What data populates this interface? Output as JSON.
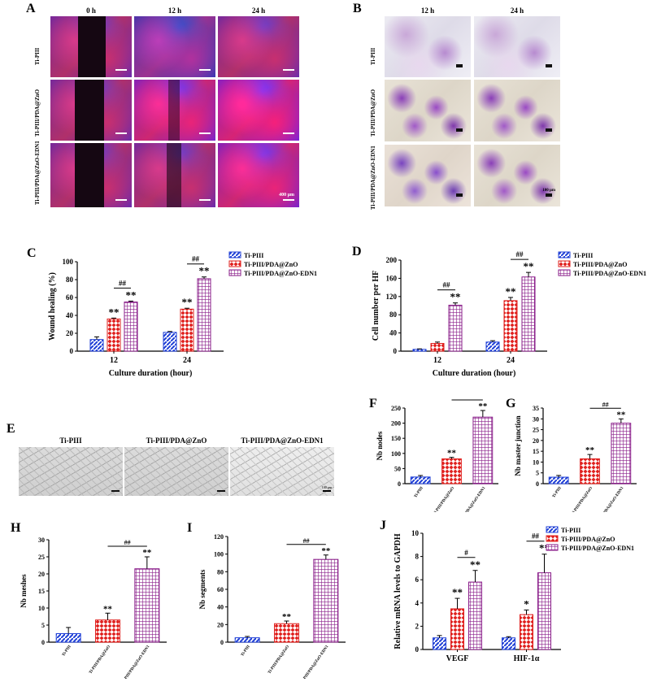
{
  "panel_labels": {
    "A": "A",
    "B": "B",
    "C": "C",
    "D": "D",
    "E": "E",
    "F": "F",
    "G": "G",
    "H": "H",
    "I": "I",
    "J": "J"
  },
  "panel_a": {
    "col_headers": [
      "0 h",
      "12 h",
      "24 h"
    ],
    "row_labels": [
      "Ti-PIII",
      "Ti-PIII/PDA@ZnO",
      "Ti-PIII/PDA@ZnO-EDN1"
    ],
    "scale_text": "400 μm"
  },
  "panel_b": {
    "col_headers": [
      "12 h",
      "24 h"
    ],
    "row_labels": [
      "Ti-PIII",
      "Ti-PIII/PDA@ZnO",
      "Ti-PIII/PDA@ZnO-EDN1"
    ],
    "scale_text": "100 μm"
  },
  "panel_e": {
    "col_headers": [
      "Ti-PIII",
      "Ti-PIII/PDA@ZnO",
      "Ti-PIII/PDA@ZnO-EDN1"
    ],
    "scale_text": "100 μm"
  },
  "legend": [
    "Ti-PIII",
    "Ti-PIII/PDA@ZnO",
    "Ti-PIII/PDA@ZnO-EDN1"
  ],
  "colors": {
    "blue": "#1f3fd6",
    "red": "#e0201e",
    "purple": "#8a1e8a"
  },
  "chart_data": [
    {
      "id": "C",
      "type": "bar",
      "categories": [
        "12",
        "24"
      ],
      "series": [
        {
          "name": "Ti-PIII",
          "values": [
            13,
            21
          ],
          "errors": [
            3,
            1
          ]
        },
        {
          "name": "Ti-PIII/PDA@ZnO",
          "values": [
            36,
            47
          ],
          "errors": [
            1,
            1
          ]
        },
        {
          "name": "Ti-PIII/PDA@ZnO-EDN1",
          "values": [
            55,
            81
          ],
          "errors": [
            1,
            2
          ]
        }
      ],
      "xlabel": "Culture duration (hour)",
      "ylabel": "Wound healing (%)",
      "ylim": [
        0,
        100
      ],
      "yticks": [
        0,
        20,
        40,
        60,
        80,
        100
      ],
      "annotations": [
        {
          "category": 0,
          "series": 1,
          "text": "**"
        },
        {
          "category": 0,
          "series": 2,
          "text": "**"
        },
        {
          "category": 1,
          "series": 1,
          "text": "**"
        },
        {
          "category": 1,
          "series": 2,
          "text": "**"
        },
        {
          "category": 0,
          "text": "##"
        },
        {
          "category": 1,
          "text": "##"
        }
      ]
    },
    {
      "id": "D",
      "type": "bar",
      "categories": [
        "12",
        "24"
      ],
      "series": [
        {
          "name": "Ti-PIII",
          "values": [
            4,
            20
          ],
          "errors": [
            1,
            3
          ]
        },
        {
          "name": "Ti-PIII/PDA@ZnO",
          "values": [
            17,
            111
          ],
          "errors": [
            3,
            7
          ]
        },
        {
          "name": "Ti-PIII/PDA@ZnO-EDN1",
          "values": [
            101,
            163
          ],
          "errors": [
            5,
            10
          ]
        }
      ],
      "xlabel": "Culture duration (hour)",
      "ylabel": "Cell number per HF",
      "ylim": [
        0,
        200
      ],
      "yticks": [
        0,
        40,
        80,
        120,
        160,
        200
      ],
      "annotations": [
        {
          "category": 0,
          "series": 2,
          "text": "**"
        },
        {
          "category": 1,
          "series": 1,
          "text": "**"
        },
        {
          "category": 1,
          "series": 2,
          "text": "**"
        },
        {
          "category": 0,
          "text": "##"
        },
        {
          "category": 1,
          "text": "##"
        }
      ]
    },
    {
      "id": "F",
      "type": "bar",
      "categories": [
        "Ti-PIII",
        "Ti-PIII/PDA@ZnO",
        "Ti-PIII/PDA@ZnO-EDN1"
      ],
      "values": [
        22,
        82,
        220
      ],
      "errors": [
        5,
        5,
        22
      ],
      "ylabel": "Nb nodes",
      "ylim": [
        0,
        250
      ],
      "yticks": [
        0,
        50,
        100,
        150,
        200,
        250
      ],
      "annotations": [
        {
          "index": 1,
          "text": "**"
        },
        {
          "index": 2,
          "text": "**"
        },
        {
          "text": "##"
        }
      ]
    },
    {
      "id": "G",
      "type": "bar",
      "categories": [
        "Ti-PIII",
        "Ti-PIII/PDA@ZnO",
        "Ti-PIII/PDA@ZnO-EDN1"
      ],
      "values": [
        3,
        11.5,
        28
      ],
      "errors": [
        0.8,
        2,
        2
      ],
      "ylabel": "Nb master junction",
      "ylim": [
        0,
        35
      ],
      "yticks": [
        0,
        5,
        10,
        15,
        20,
        25,
        30,
        35
      ],
      "annotations": [
        {
          "index": 1,
          "text": "**"
        },
        {
          "index": 2,
          "text": "**"
        },
        {
          "text": "##"
        }
      ]
    },
    {
      "id": "H",
      "type": "bar",
      "categories": [
        "Ti-PIII",
        "Ti-PIII/PDA@ZnO",
        "Ti-PIII/PDA@ZnO-EDN1"
      ],
      "values": [
        2.5,
        6.5,
        21.5
      ],
      "errors": [
        1.8,
        2,
        3.5
      ],
      "ylabel": "Nb meshes",
      "ylim": [
        0,
        30
      ],
      "yticks": [
        0,
        5,
        10,
        15,
        20,
        25,
        30
      ],
      "annotations": [
        {
          "index": 1,
          "text": "**"
        },
        {
          "index": 2,
          "text": "**"
        },
        {
          "text": "##"
        }
      ]
    },
    {
      "id": "I",
      "type": "bar",
      "categories": [
        "Ti-PIII",
        "Ti-PIII/PDA@ZnO",
        "Ti-PIII/PDA@ZnO-EDN1"
      ],
      "values": [
        5,
        21,
        94
      ],
      "errors": [
        1.5,
        3,
        5
      ],
      "ylabel": "Nb segments",
      "ylim": [
        0,
        120
      ],
      "yticks": [
        0,
        20,
        40,
        60,
        80,
        100,
        120
      ],
      "annotations": [
        {
          "index": 1,
          "text": "**"
        },
        {
          "index": 2,
          "text": "**"
        },
        {
          "text": "##"
        }
      ]
    },
    {
      "id": "J",
      "type": "bar",
      "categories": [
        "VEGF",
        "HIF-1α"
      ],
      "series": [
        {
          "name": "Ti-PIII",
          "values": [
            1,
            1
          ],
          "errors": [
            0.2,
            0.1
          ]
        },
        {
          "name": "Ti-PIII/PDA@ZnO",
          "values": [
            3.5,
            3
          ],
          "errors": [
            0.9,
            0.4
          ]
        },
        {
          "name": "Ti-PIII/PDA@ZnO-EDN1",
          "values": [
            5.8,
            6.6
          ],
          "errors": [
            1,
            1.6
          ]
        }
      ],
      "ylabel": "Relative mRNA levels to GAPDH",
      "ylim": [
        0,
        10
      ],
      "yticks": [
        0,
        2,
        4,
        6,
        8,
        10
      ],
      "annotations": [
        {
          "category": 0,
          "series": 1,
          "text": "**"
        },
        {
          "category": 0,
          "series": 2,
          "text": "**"
        },
        {
          "category": 1,
          "series": 1,
          "text": "*"
        },
        {
          "category": 1,
          "series": 2,
          "text": "**"
        },
        {
          "category": 0,
          "text": "#"
        },
        {
          "category": 1,
          "text": "##"
        }
      ]
    }
  ]
}
